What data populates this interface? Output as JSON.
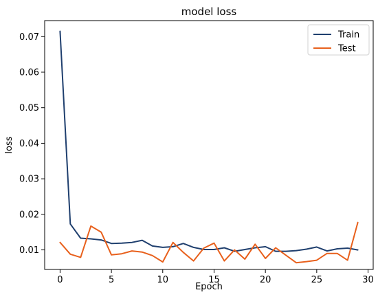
{
  "chart_data": {
    "type": "line",
    "title": "model loss",
    "xlabel": "Epoch",
    "ylabel": "loss",
    "xlim": [
      -1.5,
      30.5
    ],
    "ylim": [
      0.0045,
      0.0745
    ],
    "xticks": [
      0,
      5,
      10,
      15,
      20,
      25,
      30
    ],
    "yticks": [
      0.01,
      0.02,
      0.03,
      0.04,
      0.05,
      0.06,
      0.07
    ],
    "xtick_labels": [
      "0",
      "5",
      "10",
      "15",
      "20",
      "25",
      "30"
    ],
    "ytick_labels": [
      "0.01",
      "0.02",
      "0.03",
      "0.04",
      "0.05",
      "0.06",
      "0.07"
    ],
    "grid": false,
    "legend_position": "top-right",
    "x": [
      0,
      1,
      2,
      3,
      4,
      5,
      6,
      7,
      8,
      9,
      10,
      11,
      12,
      13,
      14,
      15,
      16,
      17,
      18,
      19,
      20,
      21,
      22,
      23,
      24,
      25,
      26,
      27,
      28,
      29
    ],
    "series": [
      {
        "name": "Train",
        "color": "#1f3f6e",
        "values": [
          0.0715,
          0.0173,
          0.0133,
          0.0131,
          0.0128,
          0.0118,
          0.0119,
          0.0121,
          0.0127,
          0.0111,
          0.0107,
          0.0109,
          0.0118,
          0.0107,
          0.0101,
          0.0101,
          0.0106,
          0.0096,
          0.0101,
          0.0106,
          0.0109,
          0.0096,
          0.0096,
          0.0098,
          0.0102,
          0.0108,
          0.0097,
          0.0103,
          0.0105,
          0.01
        ]
      },
      {
        "name": "Test",
        "color": "#e8601c",
        "values": [
          0.0121,
          0.0088,
          0.0079,
          0.0167,
          0.015,
          0.0086,
          0.0089,
          0.0097,
          0.0094,
          0.0084,
          0.0066,
          0.0121,
          0.0093,
          0.0069,
          0.0105,
          0.0119,
          0.0069,
          0.01,
          0.0074,
          0.0116,
          0.0076,
          0.0106,
          0.0085,
          0.0064,
          0.0067,
          0.0071,
          0.009,
          0.009,
          0.0071,
          0.0177
        ]
      }
    ]
  }
}
